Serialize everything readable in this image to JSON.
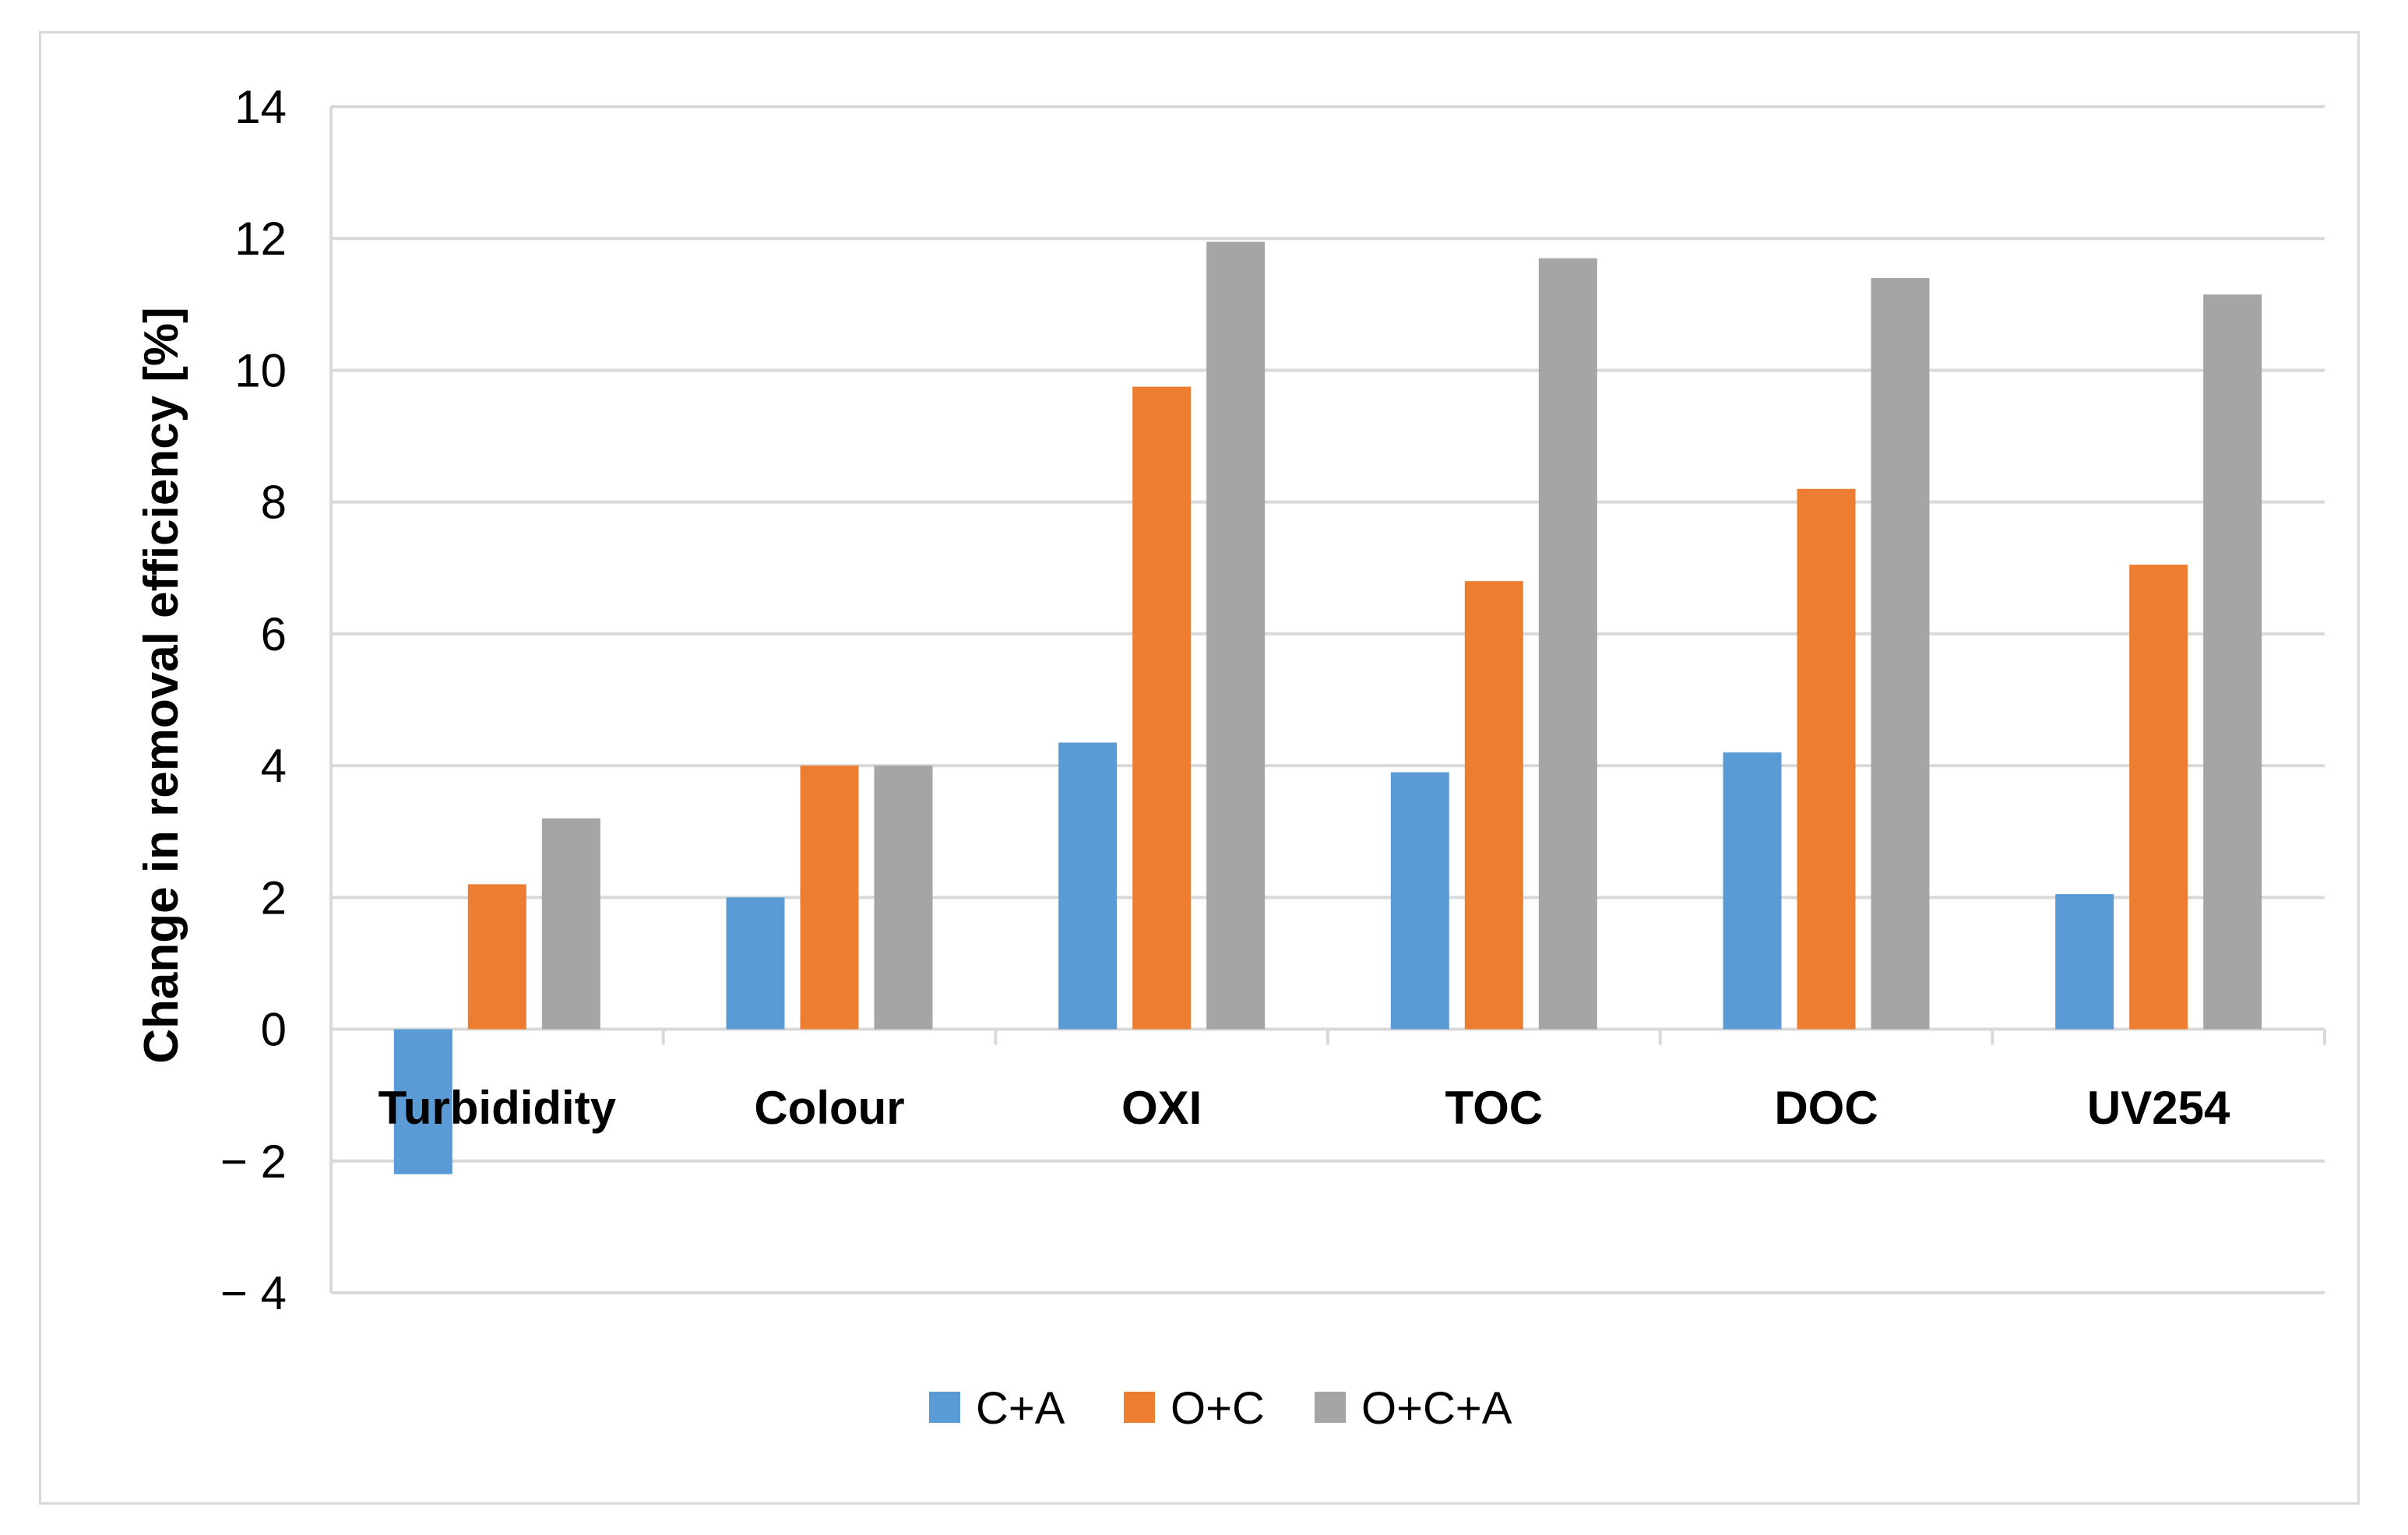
{
  "chart_data": {
    "type": "bar",
    "title": "",
    "xlabel": "",
    "ylabel": "Change in removal efficiency [%]",
    "ylim": [
      -4,
      14
    ],
    "yticks": [
      -4,
      -2,
      0,
      2,
      4,
      6,
      8,
      10,
      12,
      14
    ],
    "ytick_labels": [
      "− 4",
      "− 2",
      "0",
      "2",
      "4",
      "6",
      "8",
      "10",
      "12",
      "14"
    ],
    "grid": true,
    "legend_position": "bottom",
    "categories": [
      "Turbididity",
      "Colour",
      "OXI",
      "TOC",
      "DOC",
      "UV254"
    ],
    "series": [
      {
        "name": "C+A",
        "color": "#5b9bd5",
        "values": [
          -2.2,
          2.0,
          4.35,
          3.9,
          4.2,
          2.05
        ]
      },
      {
        "name": "O+C",
        "color": "#ed7d31",
        "values": [
          2.2,
          4.0,
          9.75,
          6.8,
          8.2,
          7.05
        ]
      },
      {
        "name": "O+C+A",
        "color": "#a5a5a5",
        "values": [
          3.2,
          4.0,
          11.95,
          11.7,
          11.4,
          11.15
        ]
      }
    ]
  }
}
